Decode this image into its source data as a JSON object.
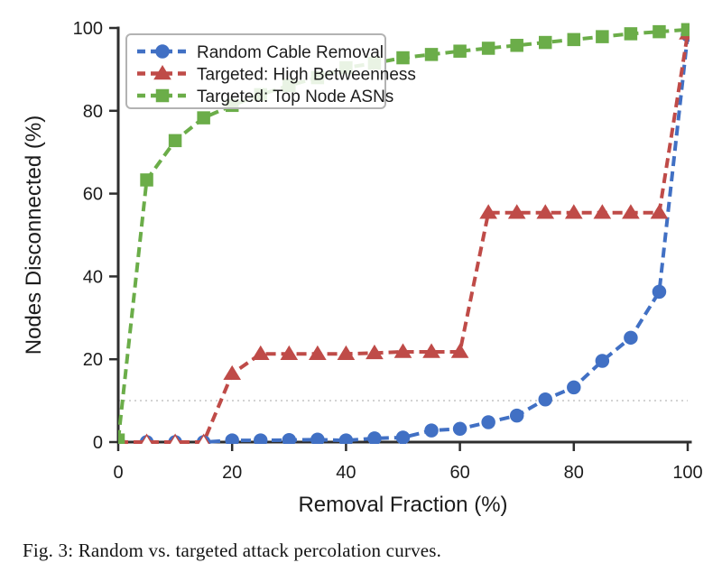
{
  "figure": {
    "caption": "Fig. 3: Random vs. targeted attack percolation curves."
  },
  "chart_data": {
    "type": "line",
    "title": "",
    "xlabel": "Removal Fraction (%)",
    "ylabel": "Nodes Disconnected (%)",
    "xlim": [
      0,
      100
    ],
    "ylim": [
      0,
      100
    ],
    "xticks": [
      0,
      20,
      40,
      60,
      80,
      100
    ],
    "yticks": [
      0,
      20,
      40,
      60,
      80,
      100
    ],
    "grid": false,
    "legend_position": "upper-left",
    "reference_line": {
      "y": 10,
      "style": "dotted",
      "color": "#c9c9c9"
    },
    "axis_color": "#2e2e2e",
    "text_color": "#1c1c1c",
    "x": [
      0,
      5,
      10,
      15,
      20,
      25,
      30,
      35,
      40,
      45,
      50,
      55,
      60,
      65,
      70,
      75,
      80,
      85,
      90,
      95,
      100
    ],
    "series": [
      {
        "name": "Random Cable Removal",
        "color": "#4170c4",
        "marker": "circle",
        "line_style": "dashed",
        "open_markers_at_zero": false,
        "values": [
          0,
          0,
          0,
          0,
          0.4,
          0.4,
          0.5,
          0.6,
          0.4,
          0.9,
          1.1,
          2.8,
          3.2,
          4.8,
          6.4,
          10.3,
          13.2,
          19.6,
          25.2,
          36.3,
          98.3
        ]
      },
      {
        "name": "Targeted: High Betweenness",
        "color": "#bf4b48",
        "marker": "triangle",
        "line_style": "dashed",
        "open_markers_at_zero": true,
        "values": [
          0,
          0,
          0,
          0,
          16.5,
          21.3,
          21.3,
          21.3,
          21.3,
          21.5,
          21.8,
          21.8,
          21.8,
          55.4,
          55.4,
          55.4,
          55.4,
          55.4,
          55.4,
          55.4,
          98.7
        ]
      },
      {
        "name": "Targeted: Top Node ASNs",
        "color": "#6bad49",
        "marker": "square",
        "line_style": "dashed",
        "open_markers_at_zero": false,
        "values": [
          0.5,
          63.3,
          72.8,
          78.3,
          81.3,
          83.9,
          86.1,
          88.0,
          90.4,
          91.5,
          92.8,
          93.6,
          94.4,
          95.1,
          95.8,
          96.5,
          97.2,
          97.9,
          98.6,
          99.1,
          99.6
        ]
      }
    ]
  }
}
